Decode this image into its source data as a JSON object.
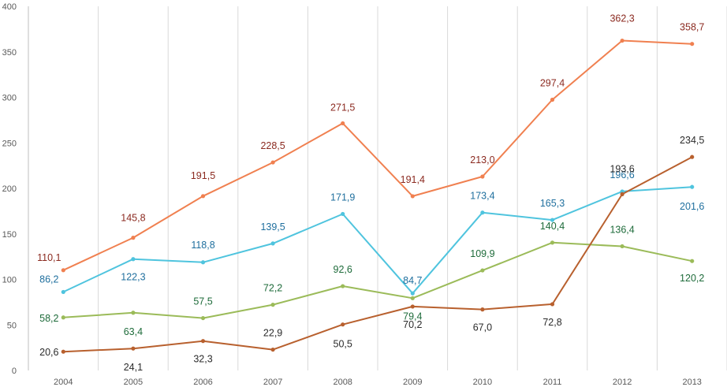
{
  "chart_data": {
    "type": "line",
    "title": "",
    "xlabel": "",
    "ylabel": "",
    "ylim": [
      0,
      400
    ],
    "yticks": [
      "0",
      "50",
      "100",
      "150",
      "200",
      "250",
      "300",
      "350",
      "400"
    ],
    "categories": [
      "2004",
      "2005",
      "2006",
      "2007",
      "2008",
      "2009",
      "2010",
      "2011",
      "2012",
      "2013"
    ],
    "grid": "vertical",
    "legend": "none",
    "series": [
      {
        "name": "orange",
        "color": "#f08050",
        "label_color": "#8b2a20",
        "values": [
          110.1,
          145.8,
          191.5,
          228.5,
          271.5,
          191.4,
          213.0,
          297.4,
          362.3,
          358.7
        ],
        "labels": [
          "110,1",
          "145,8",
          "191,5",
          "228,5",
          "271,5",
          "191,4",
          "213,0",
          "297,4",
          "362,3",
          "358,7"
        ]
      },
      {
        "name": "cyan",
        "color": "#4fc4de",
        "label_color": "#1f6f9e",
        "values": [
          86.2,
          122.3,
          118.8,
          139.5,
          171.9,
          84.7,
          173.4,
          165.3,
          196.6,
          201.6
        ],
        "labels": [
          "86,2",
          "122,3",
          "118,8",
          "139,5",
          "171,9",
          "84,7",
          "173,4",
          "165,3",
          "196,6",
          "201,6"
        ]
      },
      {
        "name": "green",
        "color": "#9bbb59",
        "label_color": "#1e6b3a",
        "values": [
          58.2,
          63.4,
          57.5,
          72.2,
          92.6,
          79.4,
          109.9,
          140.4,
          136.4,
          120.2
        ],
        "labels": [
          "58,2",
          "63,4",
          "57,5",
          "72,2",
          "92,6",
          "79,4",
          "109,9",
          "140,4",
          "136,4",
          "120,2"
        ]
      },
      {
        "name": "brown",
        "color": "#b8602e",
        "label_color": "#2b2b2b",
        "values": [
          20.6,
          24.1,
          32.3,
          22.9,
          50.5,
          70.2,
          67.0,
          72.8,
          193.6,
          234.5
        ],
        "labels": [
          "20,6",
          "24,1",
          "32,3",
          "22,9",
          "50,5",
          "70,2",
          "67,0",
          "72,8",
          "193,6",
          "234,5"
        ]
      }
    ]
  }
}
